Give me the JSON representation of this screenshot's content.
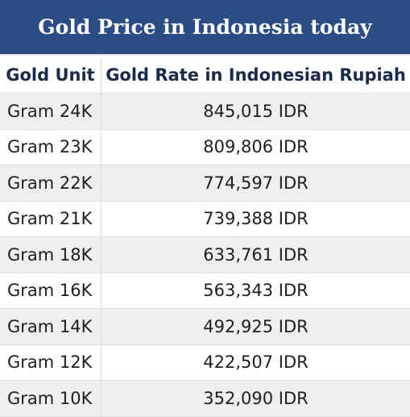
{
  "title": "Gold Price in Indonesia today",
  "table": {
    "headers": [
      "Gold Unit",
      "Gold Rate in Indonesian Rupiah"
    ],
    "rows": [
      {
        "unit": "Gram 24K",
        "rate": "845,015 IDR"
      },
      {
        "unit": "Gram 23K",
        "rate": "809,806 IDR"
      },
      {
        "unit": "Gram 22K",
        "rate": "774,597 IDR"
      },
      {
        "unit": "Gram 21K",
        "rate": "739,388 IDR"
      },
      {
        "unit": "Gram 18K",
        "rate": "633,761 IDR"
      },
      {
        "unit": "Gram 16K",
        "rate": "563,343 IDR"
      },
      {
        "unit": "Gram 14K",
        "rate": "492,925 IDR"
      },
      {
        "unit": "Gram 12K",
        "rate": "422,507 IDR"
      },
      {
        "unit": "Gram 10K",
        "rate": "352,090 IDR"
      }
    ]
  },
  "colors": {
    "header_bg": "#2c4c86",
    "stripe": "#efefef"
  }
}
